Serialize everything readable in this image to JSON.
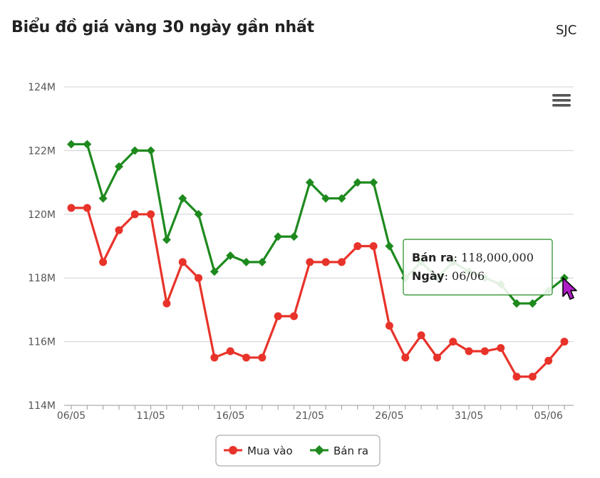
{
  "header": {
    "title": "Biểu đồ giá vàng 30 ngày gần nhất",
    "brand": "SJC"
  },
  "colors": {
    "buy": "#e8332a",
    "sell": "#1e8a1e",
    "grid": "#d0d0d0",
    "tooltip_border": "#1e8a1e"
  },
  "icons": {
    "menu": "hamburger-menu-icon",
    "cursor": "mouse-pointer-icon"
  },
  "tooltip": {
    "series_label": "Bán ra",
    "value_text": ": 118,000,000",
    "date_label": "Ngày",
    "date_text": ": 06/06",
    "point_index": 31
  },
  "chart_data": {
    "type": "line",
    "x": [
      "06/05",
      "07/05",
      "08/05",
      "09/05",
      "10/05",
      "11/05",
      "12/05",
      "13/05",
      "14/05",
      "15/05",
      "16/05",
      "17/05",
      "18/05",
      "19/05",
      "20/05",
      "21/05",
      "22/05",
      "23/05",
      "24/05",
      "25/05",
      "26/05",
      "27/05",
      "28/05",
      "29/05",
      "30/05",
      "31/05",
      "01/06",
      "02/06",
      "03/06",
      "04/06",
      "05/06",
      "06/06"
    ],
    "series": [
      {
        "name": "Mua vào",
        "marker": "circle",
        "values": [
          120.2,
          120.2,
          118.5,
          119.5,
          120.0,
          120.0,
          117.2,
          118.5,
          118.0,
          115.5,
          115.7,
          115.5,
          115.5,
          116.8,
          116.8,
          118.5,
          118.5,
          118.5,
          119.0,
          119.0,
          116.5,
          115.5,
          116.2,
          115.5,
          116.0,
          115.7,
          115.7,
          115.8,
          114.9,
          114.9,
          115.4,
          116.0
        ]
      },
      {
        "name": "Bán ra",
        "marker": "diamond",
        "values": [
          122.2,
          122.2,
          120.5,
          121.5,
          122.0,
          122.0,
          119.2,
          120.5,
          120.0,
          118.2,
          118.7,
          118.5,
          118.5,
          119.3,
          119.3,
          121.0,
          120.5,
          120.5,
          121.0,
          121.0,
          119.0,
          118.0,
          118.5,
          118.0,
          118.5,
          118.2,
          118.0,
          117.8,
          117.2,
          117.2,
          117.6,
          118.0
        ]
      }
    ],
    "xtick_labels": [
      "06/05",
      "11/05",
      "16/05",
      "21/05",
      "26/05",
      "31/05",
      "05/06"
    ],
    "xtick_indices": [
      0,
      5,
      10,
      15,
      20,
      25,
      30
    ],
    "ytick_labels": [
      "114M",
      "116M",
      "118M",
      "120M",
      "122M",
      "124M"
    ],
    "ytick_values": [
      114,
      116,
      118,
      120,
      122,
      124
    ],
    "ylim": [
      114,
      124
    ],
    "y_unit": "M",
    "grid": true,
    "legend_position": "bottom-center",
    "title": "",
    "xlabel": "",
    "ylabel": ""
  }
}
